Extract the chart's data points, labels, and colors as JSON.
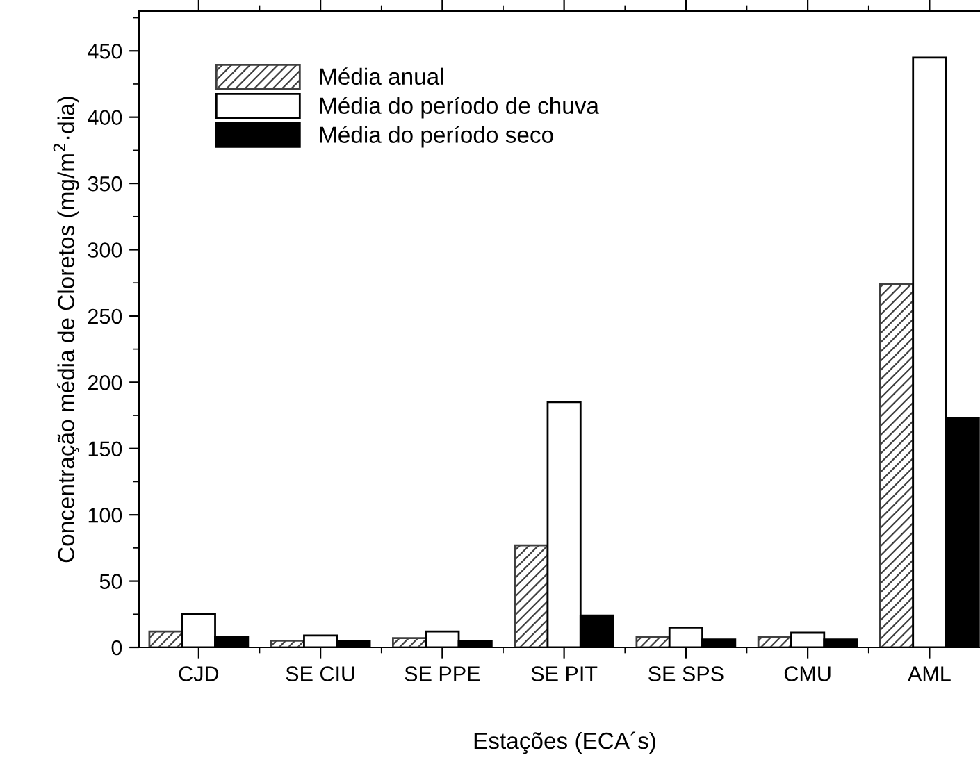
{
  "chart_data": {
    "type": "bar",
    "xlabel": "Estações (ECA´s)",
    "ylabel": "Concentração média de Cloretos (mg/m$^{2}$·dia)",
    "categories": [
      "CJD",
      "SE CIU",
      "SE PPE",
      "SE PIT",
      "SE SPS",
      "CMU",
      "AML"
    ],
    "series": [
      {
        "name": "Média anual",
        "color": "#404040",
        "values": [
          12,
          5,
          7,
          77,
          8,
          8,
          274
        ]
      },
      {
        "name": "Média do período de chuva",
        "color": "#ffffff",
        "values": [
          25,
          9,
          12,
          185,
          15,
          11,
          445
        ]
      },
      {
        "name": "Média do período seco",
        "color": "#000000",
        "values": [
          8,
          5,
          5,
          24,
          6,
          6,
          173
        ]
      }
    ],
    "ylim": [
      0,
      480
    ],
    "yticks": [
      0,
      50,
      100,
      150,
      200,
      250,
      300,
      350,
      400,
      450
    ],
    "grid": false,
    "legend": "top left"
  }
}
